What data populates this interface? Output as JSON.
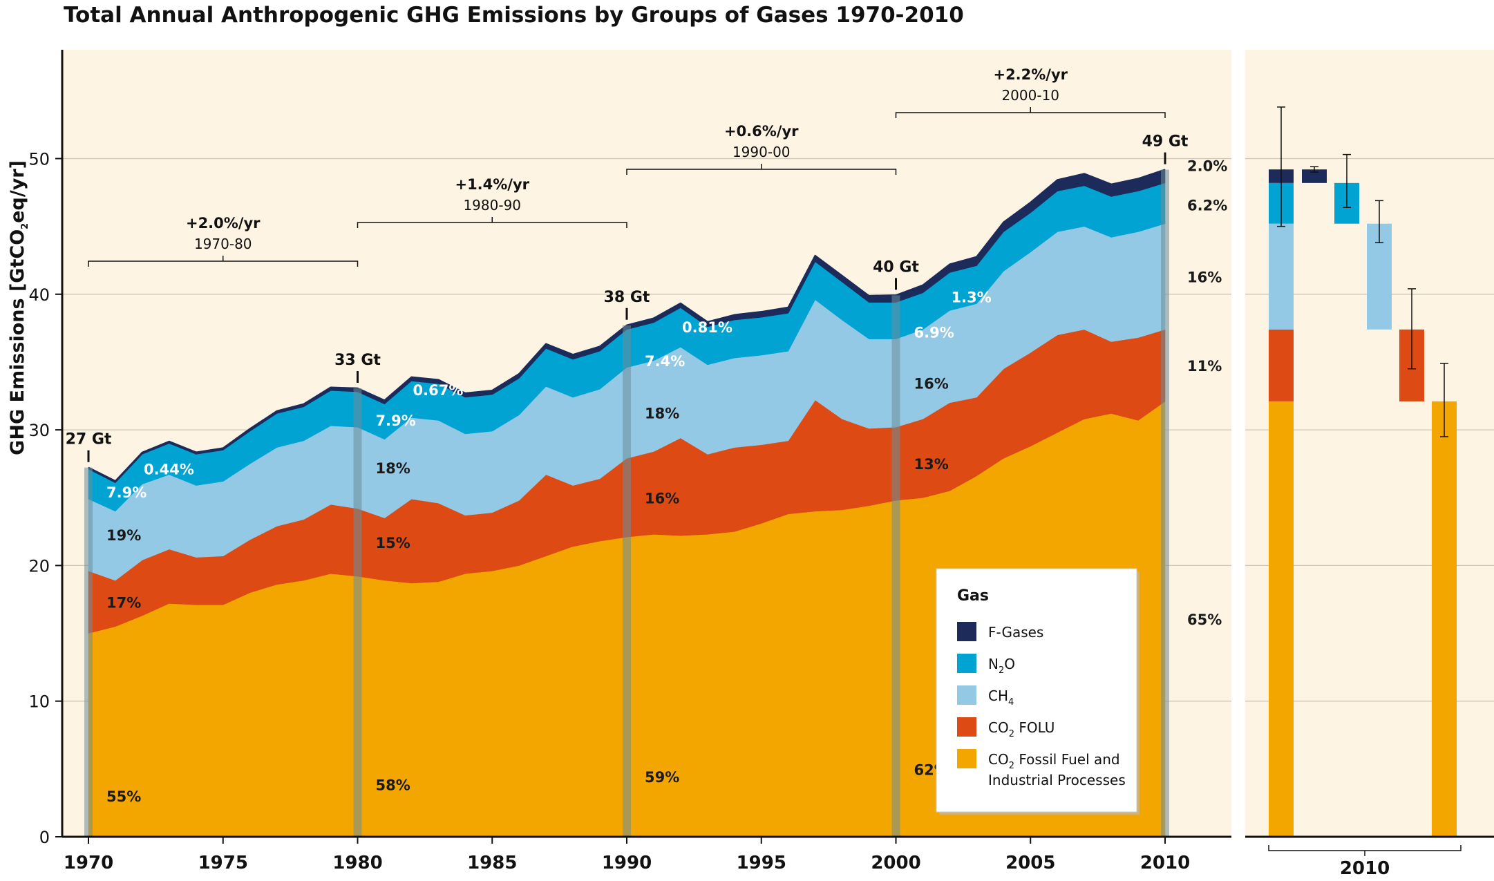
{
  "chart_data": {
    "type": "area",
    "title": "Total Annual Anthropogenic GHG Emissions by Groups of Gases 1970-2010",
    "ylabel": "GHG Emissions [GtCO2eq/yr]",
    "ylabel_parts": {
      "pre": "GHG Emissions [GtCO",
      "sub": "2",
      "post": "eq/yr]"
    },
    "ylim": [
      0,
      55
    ],
    "yticks": [
      0,
      10,
      20,
      30,
      40,
      50
    ],
    "xlim": [
      1970,
      2010
    ],
    "xticks": [
      1970,
      1975,
      1980,
      1985,
      1990,
      1995,
      2000,
      2005,
      2010
    ],
    "stacking": "stacked",
    "grid": "horizontal lines at 10, 20, 30, 40, 50",
    "x": [
      1970,
      1971,
      1972,
      1973,
      1974,
      1975,
      1976,
      1977,
      1978,
      1979,
      1980,
      1981,
      1982,
      1983,
      1984,
      1985,
      1986,
      1987,
      1988,
      1989,
      1990,
      1991,
      1992,
      1993,
      1994,
      1995,
      1996,
      1997,
      1998,
      1999,
      2000,
      2001,
      2002,
      2003,
      2004,
      2005,
      2006,
      2007,
      2008,
      2009,
      2010
    ],
    "series": [
      {
        "name": "CO2 Fossil Fuel and Industrial Processes",
        "key": "co2_ff",
        "color": "#f4a600",
        "values": [
          15.0,
          15.5,
          16.3,
          17.2,
          17.1,
          17.1,
          18.0,
          18.6,
          18.9,
          19.4,
          19.2,
          18.9,
          18.7,
          18.8,
          19.4,
          19.6,
          20.0,
          20.7,
          21.4,
          21.8,
          22.1,
          22.3,
          22.2,
          22.3,
          22.5,
          23.1,
          23.8,
          24.0,
          24.1,
          24.4,
          24.8,
          25.0,
          25.5,
          26.6,
          27.9,
          28.8,
          29.8,
          30.8,
          31.2,
          30.7,
          32.1
        ]
      },
      {
        "name": "CO2 FOLU",
        "key": "co2_folu",
        "color": "#dd4a14",
        "values": [
          4.6,
          3.4,
          4.1,
          4.0,
          3.5,
          3.6,
          3.9,
          4.3,
          4.5,
          5.1,
          5.0,
          4.6,
          6.2,
          5.8,
          4.3,
          4.3,
          4.8,
          6.0,
          4.5,
          4.6,
          5.8,
          6.1,
          7.2,
          5.9,
          6.2,
          5.8,
          5.4,
          8.2,
          6.7,
          5.7,
          5.4,
          5.8,
          6.5,
          5.8,
          6.6,
          6.9,
          7.2,
          6.6,
          5.3,
          6.1,
          5.3
        ]
      },
      {
        "name": "CH4",
        "key": "ch4",
        "color": "#94c9e5",
        "values": [
          5.3,
          5.1,
          5.6,
          5.5,
          5.3,
          5.5,
          5.6,
          5.8,
          5.8,
          5.8,
          6.0,
          5.8,
          6.0,
          6.1,
          6.0,
          6.0,
          6.3,
          6.5,
          6.5,
          6.6,
          6.7,
          6.7,
          6.7,
          6.6,
          6.6,
          6.6,
          6.6,
          7.4,
          7.3,
          6.6,
          6.5,
          6.6,
          6.8,
          6.9,
          7.2,
          7.4,
          7.6,
          7.6,
          7.7,
          7.8,
          7.8
        ]
      },
      {
        "name": "N2O",
        "key": "n2o",
        "color": "#00a3d1",
        "values": [
          2.2,
          2.1,
          2.2,
          2.3,
          2.3,
          2.3,
          2.4,
          2.5,
          2.5,
          2.6,
          2.6,
          2.6,
          2.7,
          2.7,
          2.7,
          2.7,
          2.7,
          2.8,
          2.8,
          2.8,
          2.8,
          2.8,
          2.9,
          2.8,
          2.8,
          2.8,
          2.8,
          2.8,
          2.8,
          2.7,
          2.7,
          2.7,
          2.8,
          2.8,
          2.9,
          2.9,
          3.0,
          3.0,
          3.0,
          3.0,
          3.0
        ]
      },
      {
        "name": "F-Gases",
        "key": "fgas",
        "color": "#1c2b5a",
        "values": [
          0.12,
          0.12,
          0.13,
          0.14,
          0.14,
          0.15,
          0.17,
          0.18,
          0.2,
          0.23,
          0.26,
          0.27,
          0.28,
          0.29,
          0.3,
          0.3,
          0.32,
          0.33,
          0.34,
          0.34,
          0.31,
          0.32,
          0.33,
          0.35,
          0.37,
          0.4,
          0.42,
          0.44,
          0.46,
          0.48,
          0.52,
          0.56,
          0.6,
          0.65,
          0.7,
          0.76,
          0.82,
          0.88,
          0.9,
          0.92,
          0.98
        ]
      }
    ],
    "benchmarks": [
      {
        "year": 1970,
        "total_label": "27 Gt",
        "shares": {
          "co2_ff": "55%",
          "co2_folu": "17%",
          "ch4": "19%",
          "n2o": "7.9%",
          "fgas": "0.44%"
        }
      },
      {
        "year": 1980,
        "total_label": "33 Gt",
        "shares": {
          "co2_ff": "58%",
          "co2_folu": "15%",
          "ch4": "18%",
          "n2o": "7.9%",
          "fgas": "0.67%"
        }
      },
      {
        "year": 1990,
        "total_label": "38 Gt",
        "shares": {
          "co2_ff": "59%",
          "co2_folu": "16%",
          "ch4": "18%",
          "n2o": "7.4%",
          "fgas": "0.81%"
        }
      },
      {
        "year": 2000,
        "total_label": "40 Gt",
        "shares": {
          "co2_ff": "62%",
          "co2_folu": "13%",
          "ch4": "16%",
          "n2o": "6.9%",
          "fgas": "1.3%"
        }
      },
      {
        "year": 2010,
        "total_label": "49 Gt",
        "shares": {
          "co2_ff": "65%",
          "co2_folu": "11%",
          "ch4": "16%",
          "n2o": "6.2%",
          "fgas": "2.0%"
        }
      }
    ],
    "growth_rates": [
      {
        "from": 1970,
        "to": 1980,
        "rate": "+2.0%/yr",
        "period": "1970-80"
      },
      {
        "from": 1980,
        "to": 1990,
        "rate": "+1.4%/yr",
        "period": "1980-90"
      },
      {
        "from": 1990,
        "to": 2000,
        "rate": "+0.6%/yr",
        "period": "1990-00"
      },
      {
        "from": 2000,
        "to": 2010,
        "rate": "+2.2%/yr",
        "period": "2000-10"
      }
    ],
    "uncertainty_2010": {
      "xlabel": "2010",
      "stacked_bar": [
        {
          "key": "co2_ff",
          "value": 32.1
        },
        {
          "key": "co2_folu",
          "value": 5.3
        },
        {
          "key": "ch4",
          "value": 7.8
        },
        {
          "key": "n2o",
          "value": 3.0
        },
        {
          "key": "fgas",
          "value": 1.0
        }
      ],
      "total_range": [
        45.0,
        53.8
      ],
      "waterfall": [
        {
          "key": "fgas",
          "bottom": 48.2,
          "top": 49.2,
          "range": [
            49.0,
            49.4
          ]
        },
        {
          "key": "n2o",
          "bottom": 45.2,
          "top": 48.2,
          "range": [
            46.4,
            50.3
          ]
        },
        {
          "key": "ch4",
          "bottom": 37.4,
          "top": 45.2,
          "range": [
            43.8,
            46.9
          ]
        },
        {
          "key": "co2_folu",
          "bottom": 32.1,
          "top": 37.4,
          "range": [
            34.5,
            40.4
          ]
        },
        {
          "key": "co2_ff",
          "bottom": 0,
          "top": 32.1,
          "range": [
            29.5,
            34.9
          ]
        }
      ]
    }
  },
  "legend": {
    "title": "Gas",
    "items": [
      {
        "key": "fgas",
        "label": "F-Gases",
        "pre": "F-Gases",
        "sub": "",
        "post": "",
        "color": "#1c2b5a"
      },
      {
        "key": "n2o",
        "label": "N2O",
        "pre": "N",
        "sub": "2",
        "post": "O",
        "color": "#00a3d1"
      },
      {
        "key": "ch4",
        "label": "CH4",
        "pre": "CH",
        "sub": "4",
        "post": "",
        "color": "#94c9e5"
      },
      {
        "key": "co2_folu",
        "label": "CO2 FOLU",
        "pre": "CO",
        "sub": "2",
        "post": " FOLU",
        "color": "#dd4a14"
      },
      {
        "key": "co2_ff",
        "label": "CO2 Fossil Fuel and Industrial Processes",
        "pre": "CO",
        "sub": "2",
        "post": " Fossil Fuel and",
        "line2": "Industrial Processes",
        "color": "#f4a600"
      }
    ]
  },
  "colors": {
    "background": "#fdf4e3",
    "outline": "#1c2b5a",
    "grid": "#cfc6b6",
    "benchmark_band": "#6b8e9a"
  }
}
